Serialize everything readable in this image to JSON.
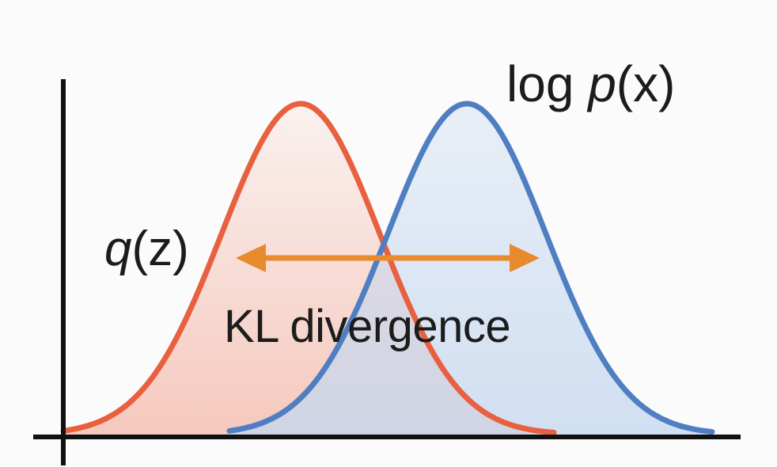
{
  "labels": {
    "p_prefix": "log ",
    "p_var": "p",
    "p_arg": "(x)",
    "q_var": "q",
    "q_arg": "(z)",
    "kl": "KL divergence"
  },
  "colors": {
    "background": "#fbfbfb",
    "axis": "#111111",
    "q_curve": "#e8603f",
    "q_fill": "#f3b8a9",
    "p_curve": "#4f7fc2",
    "p_fill": "#c6d8ef",
    "arrow": "#e88a2e"
  },
  "curves": {
    "q": {
      "name": "q(z)",
      "mean": 3.8,
      "std": 1.0
    },
    "p": {
      "name": "log p(x)",
      "mean": 5.9,
      "std": 1.0
    }
  },
  "arrow": {
    "type": "double-headed",
    "icon": "double-arrow-icon"
  }
}
